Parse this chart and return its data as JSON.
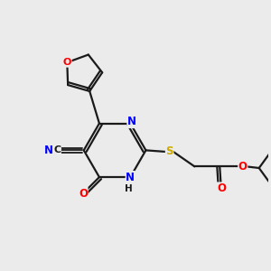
{
  "background_color": "#ebebeb",
  "bond_color": "#1a1a1a",
  "lw": 1.6,
  "atom_colors": {
    "N": "#0000ff",
    "O": "#ff0000",
    "S": "#ccaa00",
    "C": "#1a1a1a"
  },
  "figsize": [
    3.0,
    3.0
  ],
  "dpi": 100,
  "xlim": [
    0.0,
    9.0
  ],
  "ylim": [
    1.5,
    9.5
  ]
}
